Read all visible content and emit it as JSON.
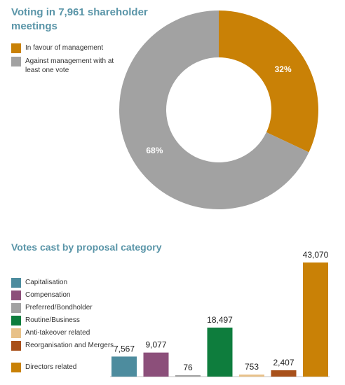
{
  "donut": {
    "title": "Voting in 7,961 shareholder meetings",
    "legend": [
      {
        "label": "In favour of management",
        "color": "#c98106"
      },
      {
        "label": "Against management with at least one vote",
        "color": "#a2a2a2"
      }
    ]
  },
  "bars": {
    "title": "Votes cast by proposal category",
    "legend": [
      {
        "label": "Capitalisation",
        "color": "#4d8c9e"
      },
      {
        "label": "Compensation",
        "color": "#8c4f7a"
      },
      {
        "label": "Preferred/Bondholder",
        "color": "#a2a2a2"
      },
      {
        "label": "Routine/Business",
        "color": "#0e7d3d"
      },
      {
        "label": "Anti-takeover related",
        "color": "#e8c188"
      },
      {
        "label": "Reorganisation and Mergers",
        "color": "#a8501a"
      },
      {
        "label": "Directors related",
        "color": "#c98106"
      }
    ]
  },
  "chart_data": [
    {
      "type": "pie",
      "title": "Voting in 7,961 shareholder meetings",
      "categories": [
        "In favour of management",
        "Against management with at least one vote"
      ],
      "values": [
        32,
        68
      ],
      "value_labels": [
        "32%",
        "68%"
      ],
      "colors": [
        "#c98106",
        "#a2a2a2"
      ],
      "donut": true
    },
    {
      "type": "bar",
      "title": "Votes cast by proposal category",
      "categories": [
        "Capitalisation",
        "Compensation",
        "Preferred/Bondholder",
        "Routine/Business",
        "Anti-takeover related",
        "Reorganisation and Mergers",
        "Directors related"
      ],
      "values": [
        7567,
        9077,
        76,
        18497,
        753,
        2407,
        43070
      ],
      "value_labels": [
        "7,567",
        "9,077",
        "76",
        "18,497",
        "753",
        "2,407",
        "43,070"
      ],
      "colors": [
        "#4d8c9e",
        "#8c4f7a",
        "#a2a2a2",
        "#0e7d3d",
        "#e8c188",
        "#a8501a",
        "#c98106"
      ],
      "legend_position": "left"
    }
  ]
}
